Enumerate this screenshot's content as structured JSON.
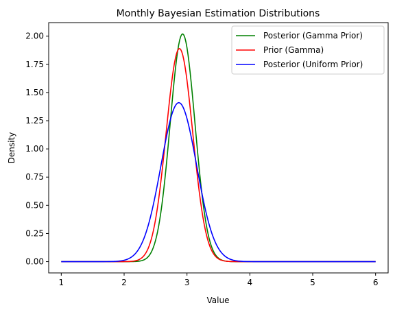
{
  "chart_data": {
    "type": "line",
    "title": "Monthly Bayesian Estimation Distributions",
    "xlabel": "Value",
    "ylabel": "Density",
    "xlim": [
      0.8,
      6.2
    ],
    "ylim": [
      -0.1,
      2.12
    ],
    "xticks": [
      1,
      2,
      3,
      4,
      5,
      6
    ],
    "yticks": [
      0.0,
      0.25,
      0.5,
      0.75,
      1.0,
      1.25,
      1.5,
      1.75,
      2.0
    ],
    "ytick_labels": [
      "0.00",
      "0.25",
      "0.50",
      "0.75",
      "1.00",
      "1.25",
      "1.50",
      "1.75",
      "2.00"
    ],
    "grid": false,
    "legend_position": "top-right",
    "x_range": [
      1,
      6
    ],
    "series": [
      {
        "name": "Posterior (Gamma Prior)",
        "color": "#008000",
        "peak_x": 2.93,
        "peak_density": 2.02
      },
      {
        "name": "Prior (Gamma)",
        "color": "#ff0000",
        "peak_x": 2.88,
        "peak_density": 1.89
      },
      {
        "name": "Posterior (Uniform Prior)",
        "color": "#0000ff",
        "peak_x": 2.87,
        "peak_density": 1.41
      }
    ]
  }
}
